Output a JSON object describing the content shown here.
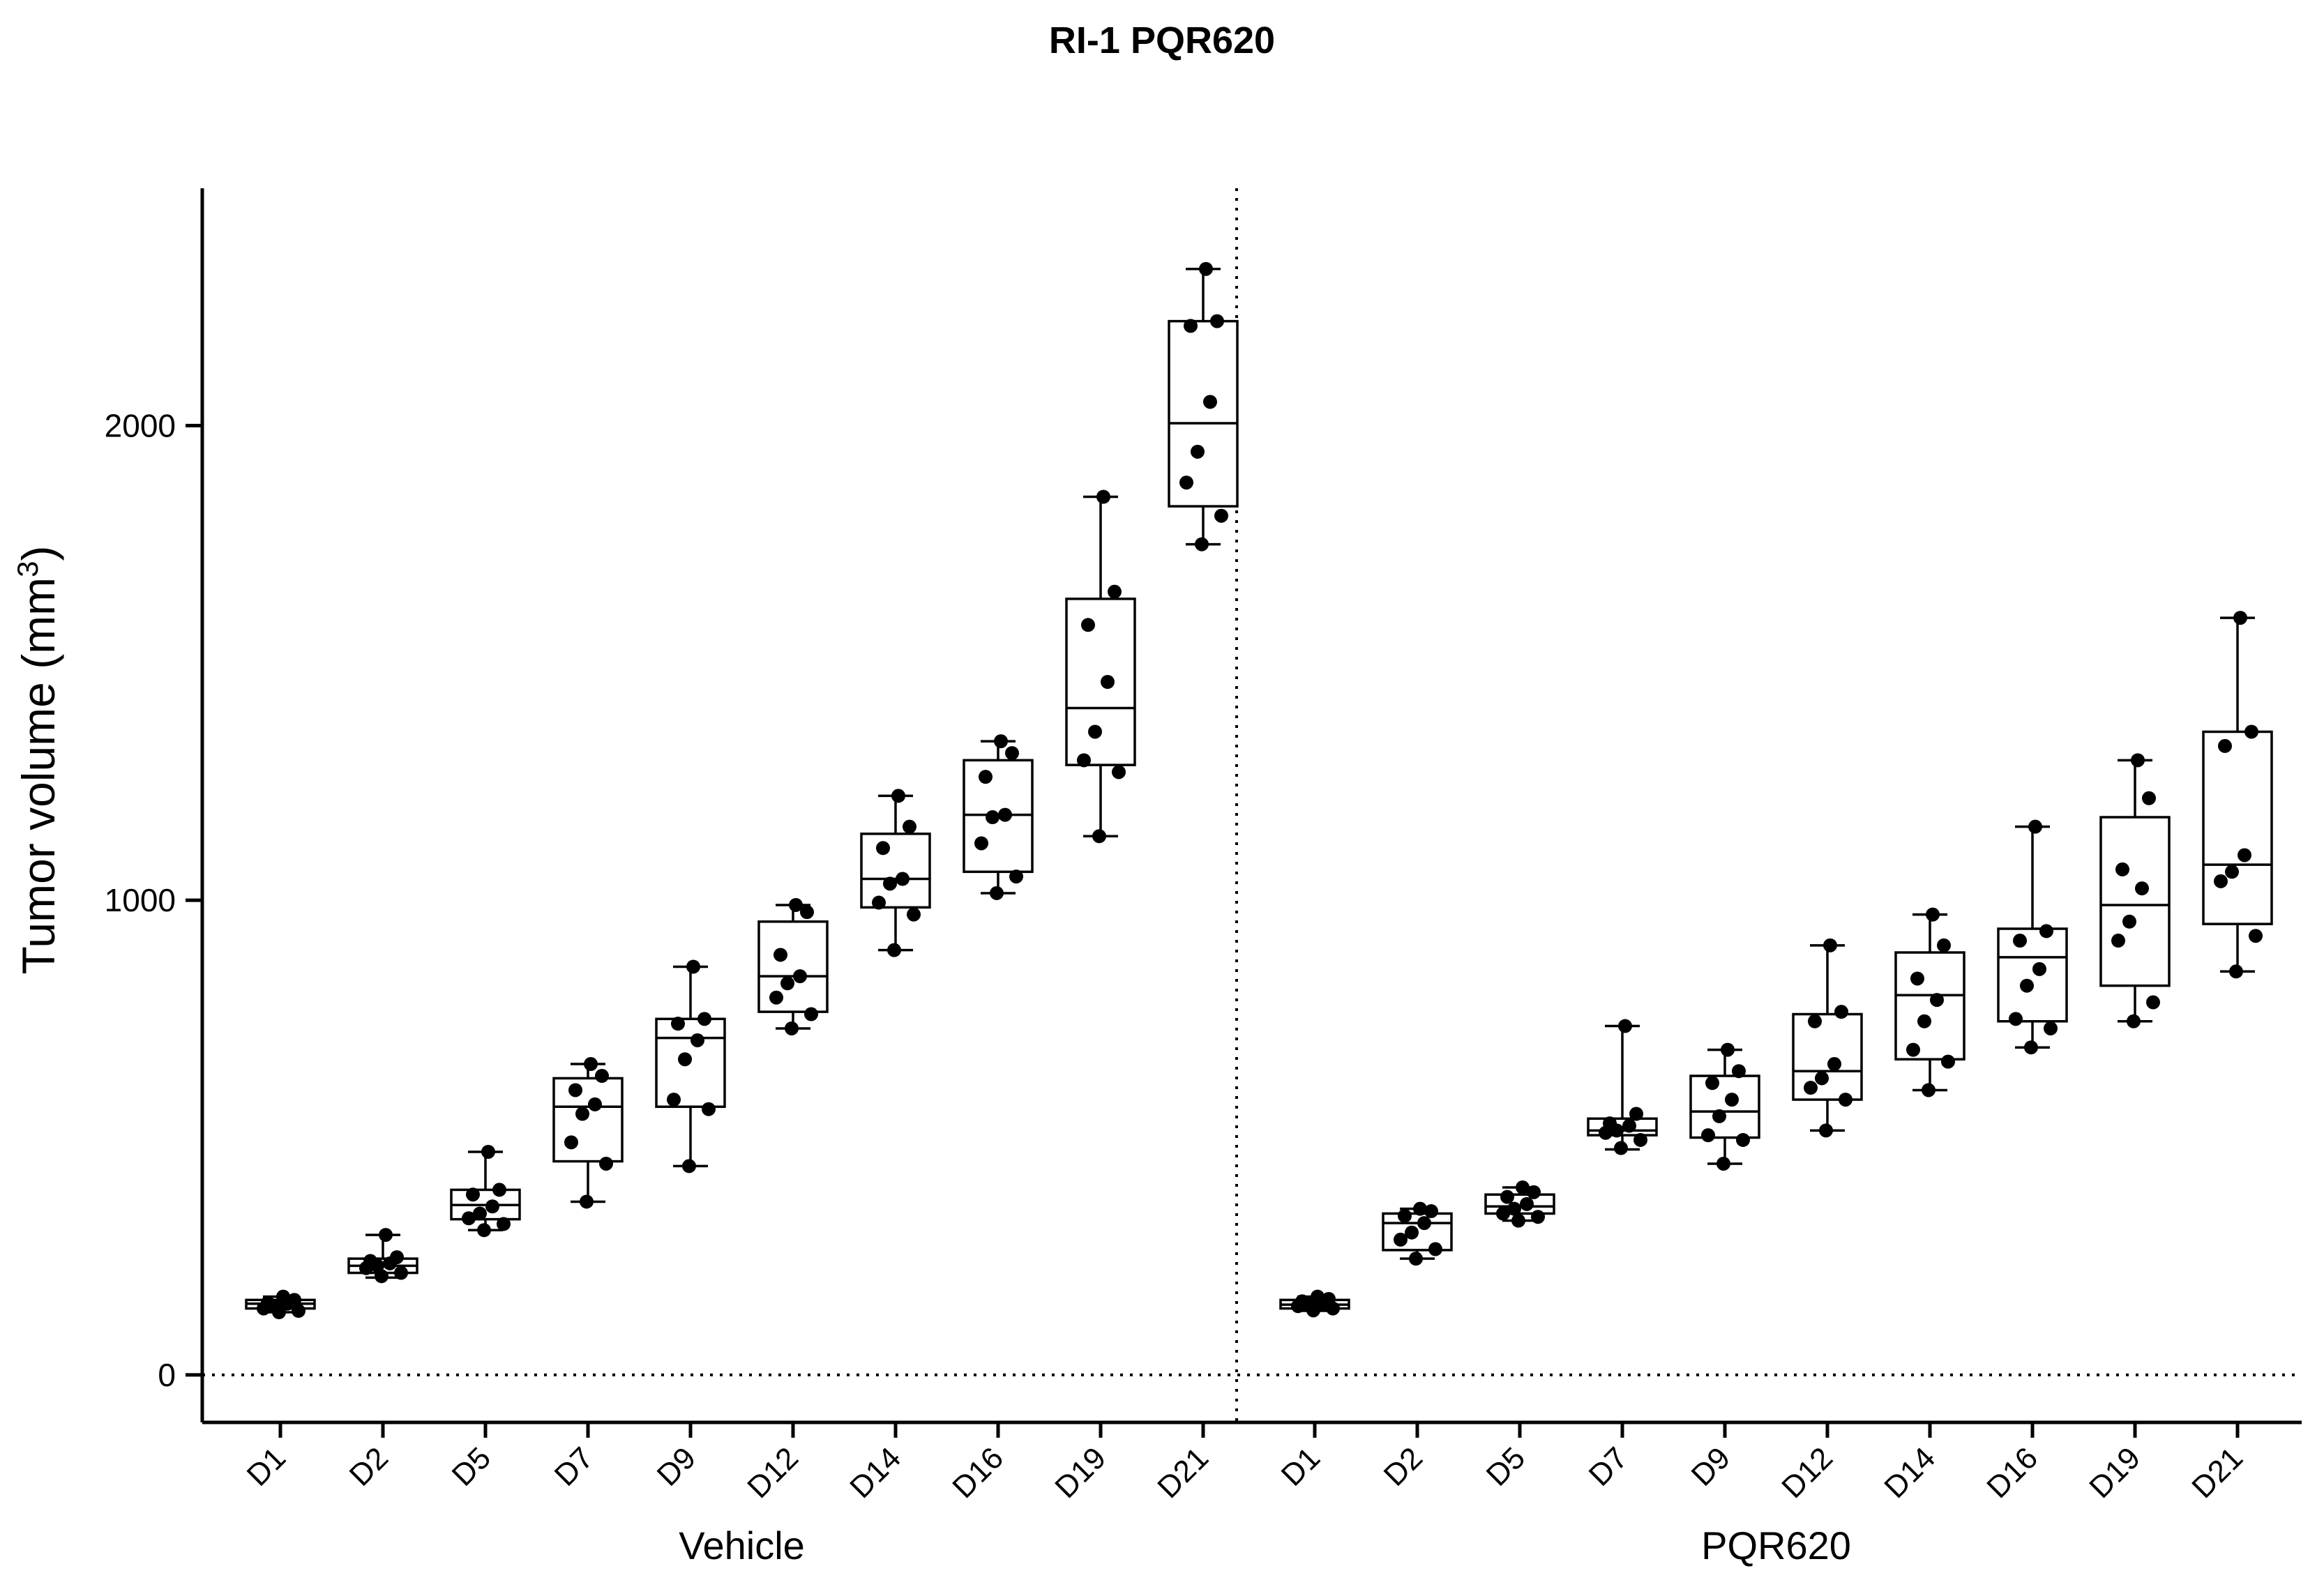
{
  "chart_data": {
    "type": "box",
    "title": "RI-1 PQR620",
    "ylabel": "Tumor volume (mm",
    "ylabel_superscript": "3",
    "ylabel_close": ")",
    "ylim": [
      -100,
      2500
    ],
    "yticks": [
      "0",
      "1000",
      "2000"
    ],
    "ytick_values": [
      0,
      1000,
      2000
    ],
    "categories": [
      "D1",
      "D2",
      "D5",
      "D7",
      "D9",
      "D12",
      "D14",
      "D16",
      "D19",
      "D21"
    ],
    "reference_line_y": 0,
    "groups": [
      {
        "name": "Vehicle",
        "boxes": [
          {
            "min": 132,
            "q1": 140,
            "median": 150,
            "q3": 158,
            "max": 165,
            "points": [
              165,
              158,
              152,
              150,
              145,
              140,
              135,
              132
            ]
          },
          {
            "min": 205,
            "q1": 215,
            "median": 230,
            "q3": 245,
            "max": 295,
            "points": [
              295,
              248,
              240,
              235,
              230,
              225,
              215,
              208
            ]
          },
          {
            "min": 305,
            "q1": 328,
            "median": 358,
            "q3": 390,
            "max": 470,
            "points": [
              470,
              390,
              380,
              355,
              340,
              330,
              318,
              305
            ]
          },
          {
            "min": 365,
            "q1": 450,
            "median": 565,
            "q3": 625,
            "max": 655,
            "points": [
              655,
              630,
              600,
              570,
              550,
              490,
              445,
              365
            ]
          },
          {
            "min": 440,
            "q1": 565,
            "median": 710,
            "q3": 750,
            "max": 860,
            "points": [
              860,
              750,
              740,
              705,
              665,
              580,
              560,
              440
            ]
          },
          {
            "min": 730,
            "q1": 765,
            "median": 840,
            "q3": 955,
            "max": 990,
            "points": [
              990,
              975,
              885,
              840,
              825,
              795,
              760,
              730
            ]
          },
          {
            "min": 895,
            "q1": 985,
            "median": 1045,
            "q3": 1140,
            "max": 1220,
            "points": [
              1220,
              1155,
              1110,
              1045,
              1035,
              995,
              970,
              895
            ]
          },
          {
            "min": 1015,
            "q1": 1060,
            "median": 1180,
            "q3": 1295,
            "max": 1335,
            "points": [
              1335,
              1310,
              1260,
              1180,
              1175,
              1120,
              1050,
              1015
            ]
          },
          {
            "min": 1135,
            "q1": 1285,
            "median": 1405,
            "q3": 1635,
            "max": 1850,
            "points": [
              1850,
              1650,
              1580,
              1460,
              1355,
              1295,
              1270,
              1135
            ]
          },
          {
            "min": 1750,
            "q1": 1830,
            "median": 2005,
            "q3": 2220,
            "max": 2330,
            "points": [
              2330,
              2220,
              2210,
              2050,
              1945,
              1880,
              1810,
              1750
            ]
          }
        ]
      },
      {
        "name": "PQR620",
        "boxes": [
          {
            "min": 135,
            "q1": 140,
            "median": 148,
            "q3": 158,
            "max": 165,
            "points": [
              165,
              160,
              155,
              150,
              148,
              145,
              140,
              136
            ]
          },
          {
            "min": 245,
            "q1": 263,
            "median": 320,
            "q3": 340,
            "max": 350,
            "points": [
              350,
              345,
              335,
              320,
              300,
              285,
              265,
              245
            ]
          },
          {
            "min": 325,
            "q1": 340,
            "median": 355,
            "q3": 380,
            "max": 395,
            "points": [
              395,
              385,
              375,
              360,
              350,
              340,
              333,
              325
            ]
          },
          {
            "min": 475,
            "q1": 505,
            "median": 515,
            "q3": 540,
            "max": 735,
            "points": [
              735,
              550,
              530,
              525,
              515,
              510,
              495,
              478
            ]
          },
          {
            "min": 445,
            "q1": 500,
            "median": 555,
            "q3": 630,
            "max": 685,
            "points": [
              685,
              640,
              615,
              580,
              545,
              505,
              495,
              445
            ]
          },
          {
            "min": 515,
            "q1": 580,
            "median": 640,
            "q3": 760,
            "max": 905,
            "points": [
              905,
              765,
              745,
              655,
              625,
              605,
              580,
              515
            ]
          },
          {
            "min": 600,
            "q1": 665,
            "median": 800,
            "q3": 890,
            "max": 970,
            "points": [
              970,
              905,
              835,
              790,
              745,
              685,
              660,
              600
            ]
          },
          {
            "min": 690,
            "q1": 745,
            "median": 880,
            "q3": 940,
            "max": 1155,
            "points": [
              1155,
              935,
              915,
              855,
              820,
              750,
              730,
              690
            ]
          },
          {
            "min": 745,
            "q1": 820,
            "median": 990,
            "q3": 1175,
            "max": 1295,
            "points": [
              1295,
              1215,
              1065,
              1025,
              955,
              915,
              785,
              745
            ]
          },
          {
            "min": 850,
            "q1": 950,
            "median": 1075,
            "q3": 1355,
            "max": 1595,
            "points": [
              1595,
              1355,
              1325,
              1095,
              1060,
              1040,
              925,
              850
            ]
          }
        ]
      }
    ]
  }
}
